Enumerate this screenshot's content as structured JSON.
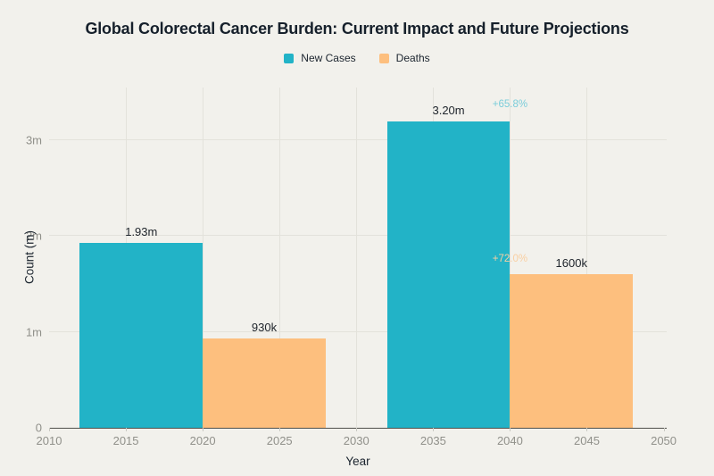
{
  "title": "Global Colorectal Cancer Burden: Current Impact and Future Projections",
  "chart_data": {
    "type": "bar",
    "title": "Global Colorectal Cancer Burden: Current Impact and Future Projections",
    "xlabel": "Year",
    "ylabel": "Count (m)",
    "xlim": [
      2010,
      2050.2
    ],
    "ylim": [
      0,
      3.55
    ],
    "grid": true,
    "legend_position": "top-center",
    "x_ticks": [
      {
        "value": 2010,
        "label": "2010"
      },
      {
        "value": 2015,
        "label": "2015"
      },
      {
        "value": 2020,
        "label": "2020"
      },
      {
        "value": 2025,
        "label": "2025"
      },
      {
        "value": 2030,
        "label": "2030"
      },
      {
        "value": 2035,
        "label": "2035"
      },
      {
        "value": 2040,
        "label": "2040"
      },
      {
        "value": 2045,
        "label": "2045"
      },
      {
        "value": 2050,
        "label": "2050"
      }
    ],
    "y_ticks": [
      {
        "value": 0,
        "label": "0"
      },
      {
        "value": 1,
        "label": "1m"
      },
      {
        "value": 2,
        "label": "2m"
      },
      {
        "value": 3,
        "label": "3m"
      }
    ],
    "gridlines": {
      "h_values": [
        1,
        2,
        3
      ],
      "v_values": [
        2015,
        2020,
        2025,
        2030,
        2035,
        2040,
        2045
      ]
    },
    "series": [
      {
        "name": "New Cases",
        "color": "#22b3c7",
        "bars": [
          {
            "from": 2012,
            "to": 2020,
            "value": 1.93,
            "label": "1.93m"
          },
          {
            "from": 2032,
            "to": 2040,
            "value": 3.2,
            "label": "3.20m"
          }
        ]
      },
      {
        "name": "Deaths",
        "color": "#fdbf7e",
        "bars": [
          {
            "from": 2020,
            "to": 2028,
            "value": 0.93,
            "label": "930k"
          },
          {
            "from": 2040,
            "to": 2048,
            "value": 1.6,
            "label": "1600k"
          }
        ]
      }
    ],
    "annotations": [
      {
        "text": "+65.8%",
        "year": 2040,
        "value": 3.37,
        "color": "#7bcdda"
      },
      {
        "text": "+72.0%",
        "year": 2040,
        "value": 1.76,
        "color": "#f9cfa2"
      }
    ]
  },
  "colors": {
    "background": "#f2f1ec",
    "gridline": "#e3e2db",
    "axis_line": "#4f4f4a",
    "title_text": "#16202b",
    "bar_label_text": "#20262d",
    "tick_label_text": "#90908a",
    "new_cases": "#22b3c7",
    "deaths": "#fdbf7e",
    "annotation_new_cases": "#7bcdda",
    "annotation_deaths": "#f9cfa2"
  }
}
